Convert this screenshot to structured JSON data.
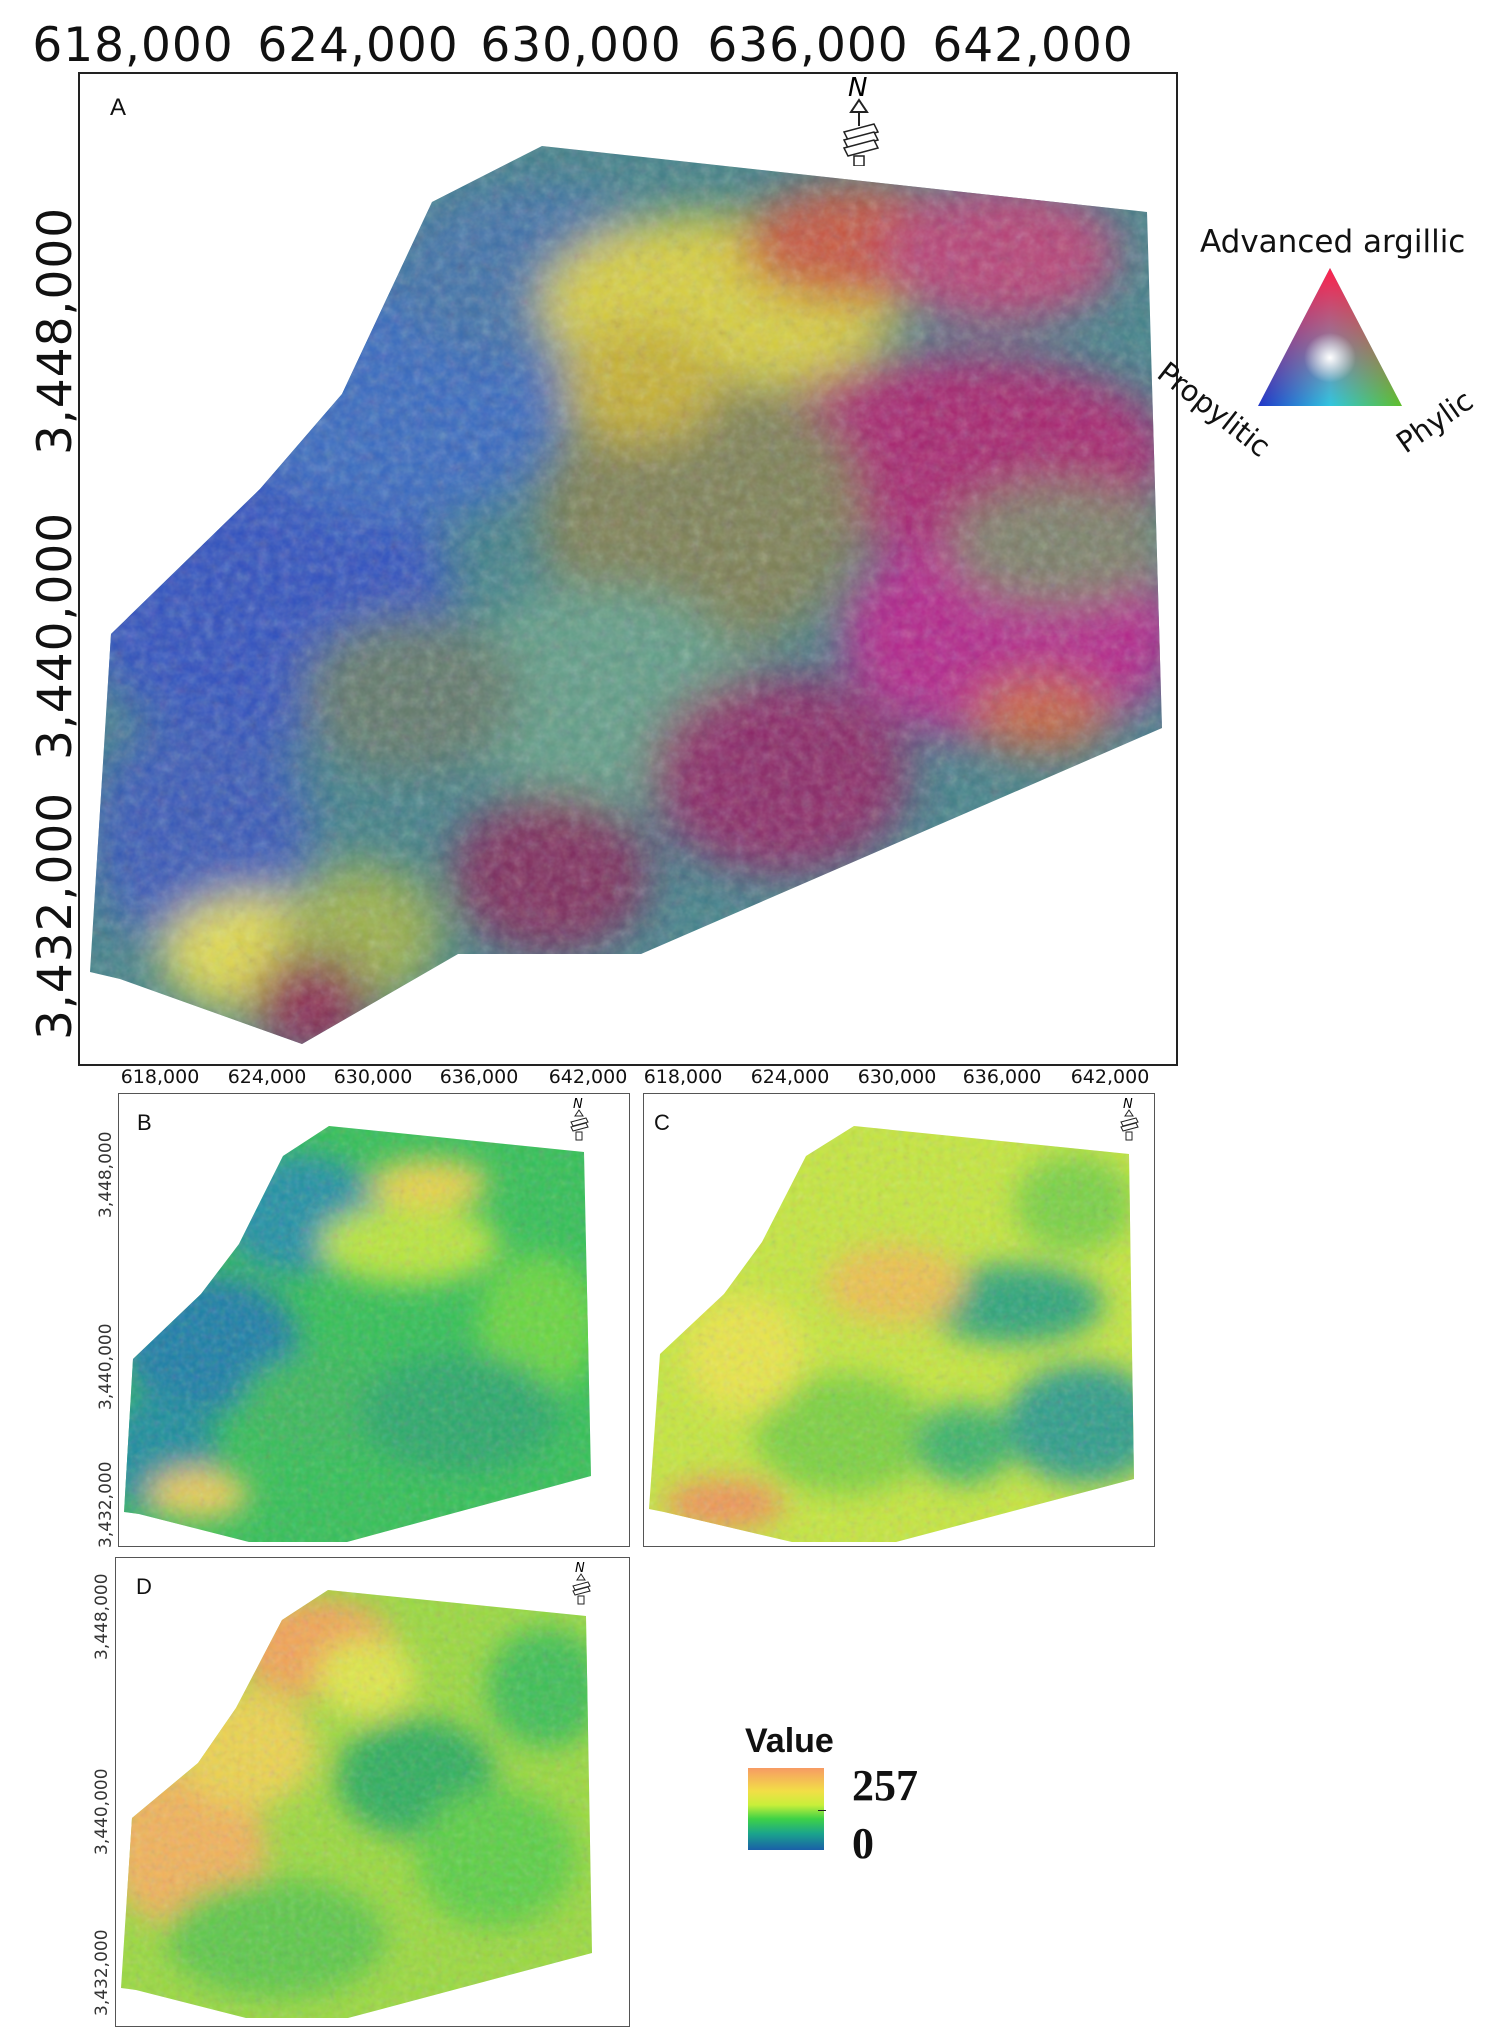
{
  "panel_a": {
    "letter": "A",
    "x_ticks": [
      "618,000",
      "624,000",
      "630,000",
      "636,000",
      "642,000"
    ],
    "y_ticks": [
      "3,448,000",
      "3,440,000",
      "3,432,000"
    ],
    "north_label": "N"
  },
  "panels_small_x_ticks_left": [
    "618,000",
    "624,000",
    "630,000",
    "636,000",
    "642,000"
  ],
  "panels_small_x_ticks_right": [
    "618,000",
    "624,000",
    "630,000",
    "636,000",
    "642,000"
  ],
  "panel_b": {
    "letter": "B",
    "y_ticks": [
      "3,448,000",
      "3,440,000",
      "3,432,000"
    ],
    "north_label": "N"
  },
  "panel_c": {
    "letter": "C",
    "north_label": "N"
  },
  "panel_d": {
    "letter": "D",
    "y_ticks": [
      "3,448,000",
      "3,440,000",
      "3,432,000"
    ],
    "north_label": "N"
  },
  "ternary_legend": {
    "top": "Advanced argillic",
    "left": "Propylitic",
    "right": "Phylic",
    "colors": {
      "top": "#ff1f4a",
      "left": "#2036c8",
      "right": "#5fbf2a",
      "center": "#ffffff"
    }
  },
  "value_legend": {
    "title": "Value",
    "max": "257",
    "min": "0",
    "colors": [
      "#f79b64",
      "#f2de47",
      "#3ed246",
      "#1a5fa8"
    ]
  }
}
